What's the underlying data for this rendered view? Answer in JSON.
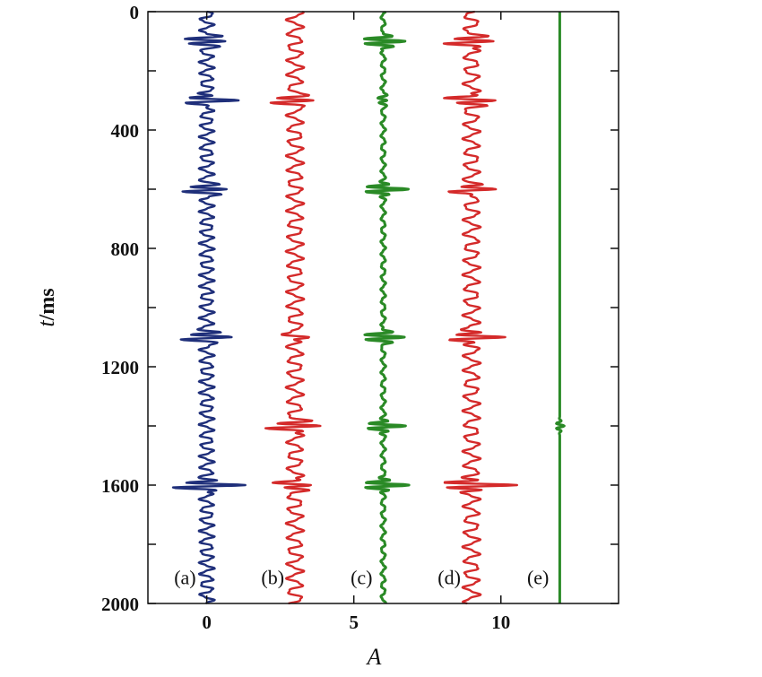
{
  "chart_data": {
    "type": "line",
    "title": "",
    "xlabel": "A",
    "ylabel": "t/ms",
    "ylabel_italic_part": "t",
    "ylabel_unit_part": "/ms",
    "xlim": [
      -2,
      14
    ],
    "ylim": [
      2000,
      0
    ],
    "y_inverted": true,
    "x_ticks": [
      0,
      5,
      10
    ],
    "x_tick_labels": [
      "0",
      "5",
      "10"
    ],
    "y_ticks": [
      0,
      400,
      800,
      1200,
      1600,
      2000
    ],
    "y_tick_labels": [
      "0",
      "400",
      "800",
      "1200",
      "1600",
      "2000"
    ],
    "y_minor_ticks": [
      200,
      600,
      1000,
      1400,
      1800
    ],
    "grid": false,
    "legend": "none",
    "series": [
      {
        "label": "(a)",
        "color": "#1f2f7a",
        "baseline": 0,
        "background_amplitude": 0.22,
        "background_period_ms": 36,
        "spikes": [
          {
            "t": 100,
            "amplitude": 0.85
          },
          {
            "t": 300,
            "amplitude": 0.9
          },
          {
            "t": 600,
            "amplitude": 0.85
          },
          {
            "t": 1100,
            "amplitude": 0.95
          },
          {
            "t": 1600,
            "amplitude": 1.2
          }
        ]
      },
      {
        "label": "(b)",
        "color": "#d42a2a",
        "baseline": 3,
        "background_amplitude": 0.25,
        "background_period_ms": 46,
        "spikes": [
          {
            "t": 300,
            "amplitude": 0.9
          },
          {
            "t": 1100,
            "amplitude": 0.45
          },
          {
            "t": 1400,
            "amplitude": 0.95
          },
          {
            "t": 1600,
            "amplitude": 0.6
          }
        ]
      },
      {
        "label": "(c)",
        "color": "#2a8a26",
        "baseline": 6,
        "background_amplitude": 0.07,
        "background_period_ms": 40,
        "spikes": [
          {
            "t": 100,
            "amplitude": 0.8
          },
          {
            "t": 300,
            "amplitude": 0.2
          },
          {
            "t": 600,
            "amplitude": 0.8
          },
          {
            "t": 1100,
            "amplitude": 0.8
          },
          {
            "t": 1400,
            "amplitude": 0.7
          },
          {
            "t": 1600,
            "amplitude": 0.8
          }
        ]
      },
      {
        "label": "(d)",
        "color": "#d42a2a",
        "baseline": 9,
        "background_amplitude": 0.25,
        "background_period_ms": 46,
        "spikes": [
          {
            "t": 100,
            "amplitude": 0.85
          },
          {
            "t": 300,
            "amplitude": 0.85
          },
          {
            "t": 600,
            "amplitude": 0.85
          },
          {
            "t": 1100,
            "amplitude": 0.9
          },
          {
            "t": 1600,
            "amplitude": 1.3
          }
        ]
      },
      {
        "label": "(e)",
        "color": "#2a8a26",
        "baseline": 12,
        "background_amplitude": 0.0,
        "background_period_ms": 40,
        "spikes": [
          {
            "t": 1400,
            "amplitude": 0.15
          }
        ]
      }
    ]
  }
}
